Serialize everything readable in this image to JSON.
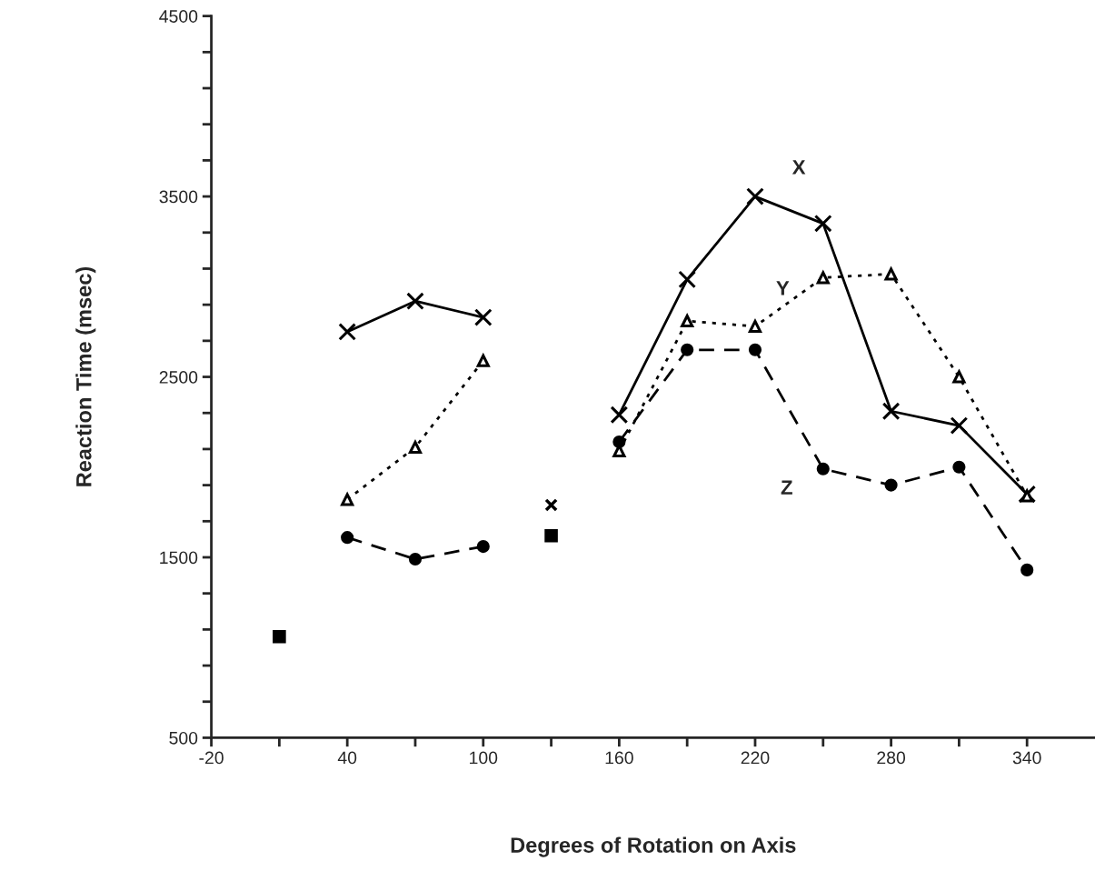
{
  "chart_data": {
    "type": "line",
    "xlabel": "Degrees of Rotation on Axis",
    "ylabel": "Reaction Time (msec)",
    "xlim": [
      -20,
      370
    ],
    "ylim": [
      500,
      4500
    ],
    "xticks": [
      -20,
      {
        "value": 10,
        "label": null
      },
      40,
      {
        "value": 70,
        "label": null
      },
      100,
      {
        "value": 130,
        "label": null
      },
      160,
      {
        "value": 190,
        "label": null
      },
      220,
      {
        "value": 250,
        "label": null
      },
      280,
      {
        "value": 310,
        "label": null
      },
      340
    ],
    "yticks": [
      500,
      {
        "value": 700,
        "label": null
      },
      {
        "value": 900,
        "label": null
      },
      {
        "value": 1100,
        "label": null
      },
      {
        "value": 1300,
        "label": null
      },
      1500,
      {
        "value": 1700,
        "label": null
      },
      {
        "value": 1900,
        "label": null
      },
      {
        "value": 2100,
        "label": null
      },
      {
        "value": 2300,
        "label": null
      },
      2500,
      {
        "value": 2700,
        "label": null
      },
      {
        "value": 2900,
        "label": null
      },
      {
        "value": 3100,
        "label": null
      },
      {
        "value": 3300,
        "label": null
      },
      3500,
      {
        "value": 3700,
        "label": null
      },
      {
        "value": 3900,
        "label": null
      },
      {
        "value": 4100,
        "label": null
      },
      {
        "value": 4300,
        "label": null
      },
      4500
    ],
    "grid": false,
    "legend": false,
    "series": [
      {
        "name": "X",
        "color": "#000000",
        "marker": "cross",
        "line_style": "solid",
        "x": [
          40,
          70,
          100,
          130,
          160,
          190,
          220,
          250,
          280,
          310,
          340
        ],
        "values": [
          2750,
          2920,
          2830,
          null,
          2290,
          3040,
          3500,
          3350,
          2310,
          2230,
          1850
        ]
      },
      {
        "name": "Y",
        "color": "#000000",
        "marker": "triangle",
        "line_style": "dotted",
        "x": [
          40,
          70,
          100,
          130,
          160,
          190,
          220,
          250,
          280,
          310,
          340
        ],
        "values": [
          1820,
          2110,
          2590,
          null,
          2090,
          2810,
          2780,
          3050,
          3070,
          2500,
          1840
        ]
      },
      {
        "name": "Z",
        "color": "#000000",
        "marker": "circle",
        "line_style": "dashed",
        "x": [
          40,
          70,
          100,
          130,
          160,
          190,
          220,
          250,
          280,
          310,
          340
        ],
        "values": [
          1610,
          1490,
          1560,
          null,
          2140,
          2650,
          2650,
          1990,
          1900,
          2000,
          1430
        ]
      },
      {
        "type": "scatter",
        "color": "#000000",
        "marker": "cross",
        "x": [
          130
        ],
        "values": [
          1790
        ]
      },
      {
        "type": "scatter",
        "color": "#000000",
        "marker": "square",
        "x": [
          10,
          130
        ],
        "values": [
          1060,
          1620
        ]
      }
    ]
  }
}
